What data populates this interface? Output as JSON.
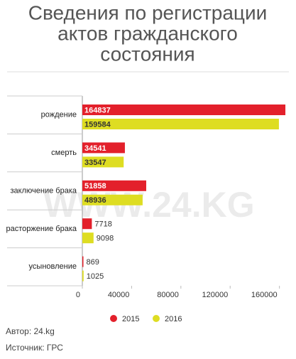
{
  "chart_data": {
    "type": "hbar",
    "title_lines": [
      "Сведения по регистрации",
      "актов гражданского",
      "состояния"
    ],
    "categories": [
      "рождение",
      "смерть",
      "заключение брака",
      "расторжение брака",
      "усыновление"
    ],
    "series": [
      {
        "name": "2015",
        "color": "#e3202b",
        "values": [
          164837,
          34541,
          51858,
          7718,
          869
        ]
      },
      {
        "name": "2016",
        "color": "#dedd22",
        "values": [
          159584,
          33547,
          48936,
          9098,
          1025
        ]
      }
    ],
    "xlim": [
      0,
      170000
    ],
    "xticks": [
      0,
      40000,
      80000,
      120000,
      160000
    ],
    "watermark": "WWW.24.KG",
    "author": "Автор: 24.kg",
    "source": "Источник: ГРС"
  }
}
